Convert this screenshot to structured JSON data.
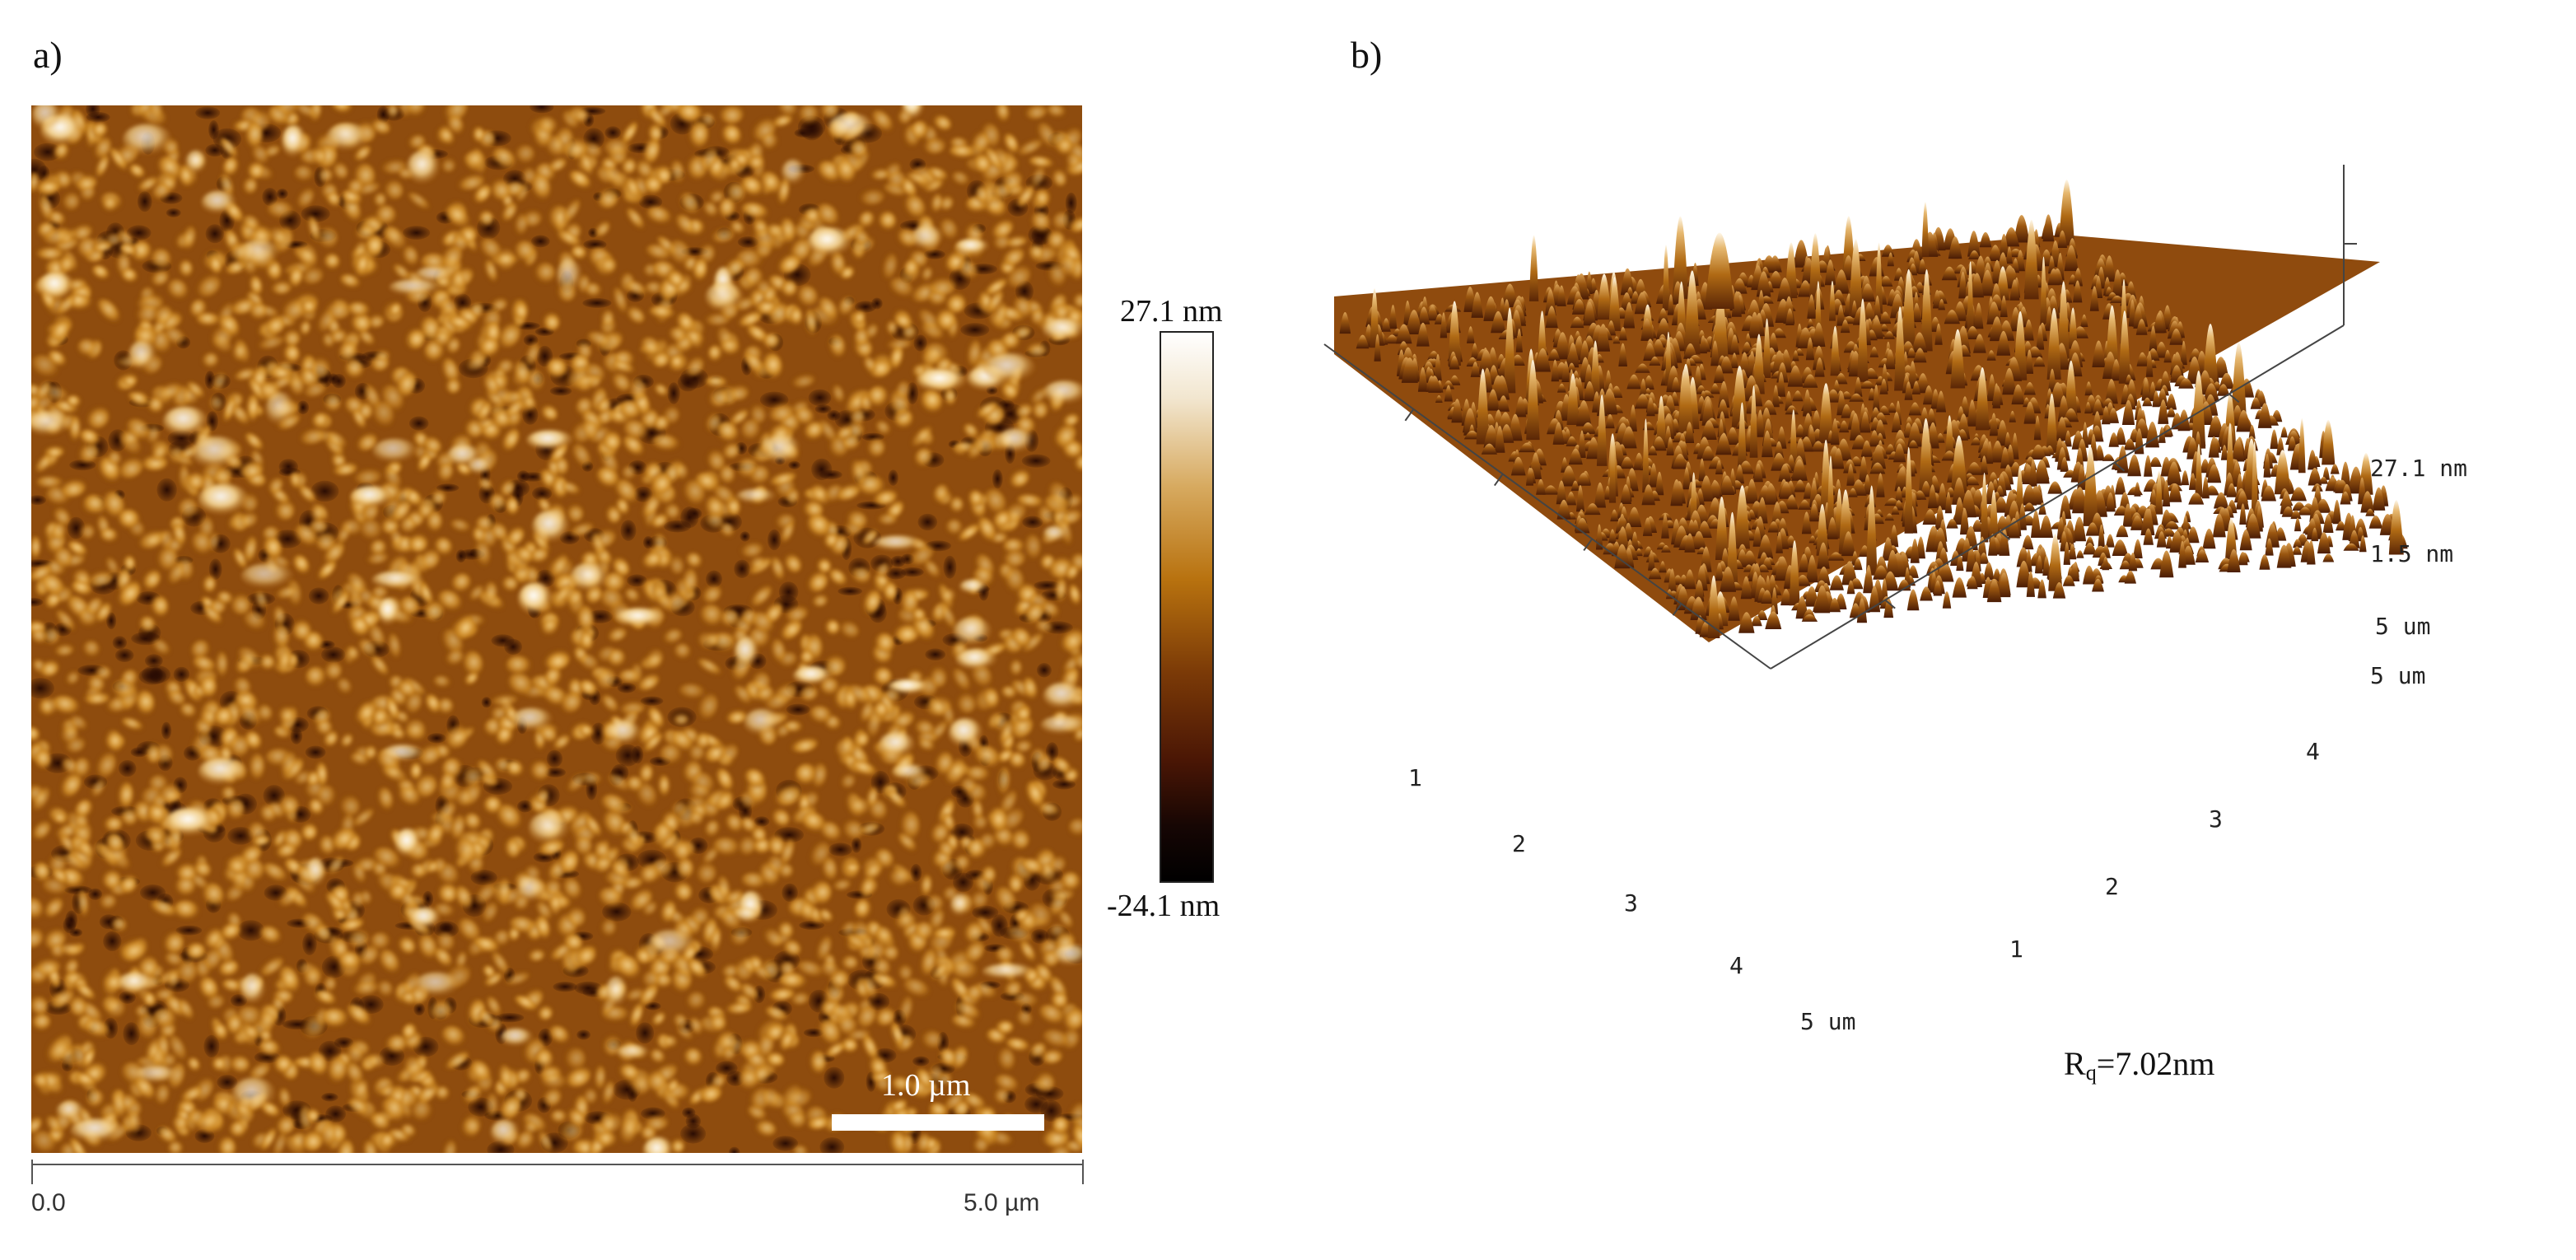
{
  "panel_a": {
    "label": "a)",
    "colorbar": {
      "max": "27.1 nm",
      "min": "-24.1 nm"
    },
    "scale_bar": "1.0 µm",
    "x_axis": {
      "start": "0.0",
      "end": "5.0 µm"
    }
  },
  "panel_b": {
    "label": "b)",
    "z_axis": {
      "top": "27.1 nm",
      "mid": "1.5 nm"
    },
    "axis_end_label": "5 um",
    "left_axis_ticks": [
      "1",
      "2",
      "3",
      "4"
    ],
    "left_axis_end": "5 um",
    "right_axis_ticks": [
      "1",
      "2",
      "3",
      "4"
    ],
    "right_axis_end": "5 um",
    "roughness": {
      "symbol": "R",
      "subscript": "q",
      "value": "=7.02nm"
    }
  },
  "colors": {
    "low": "#000000",
    "mid": "#b8720f",
    "high": "#ffffff"
  }
}
